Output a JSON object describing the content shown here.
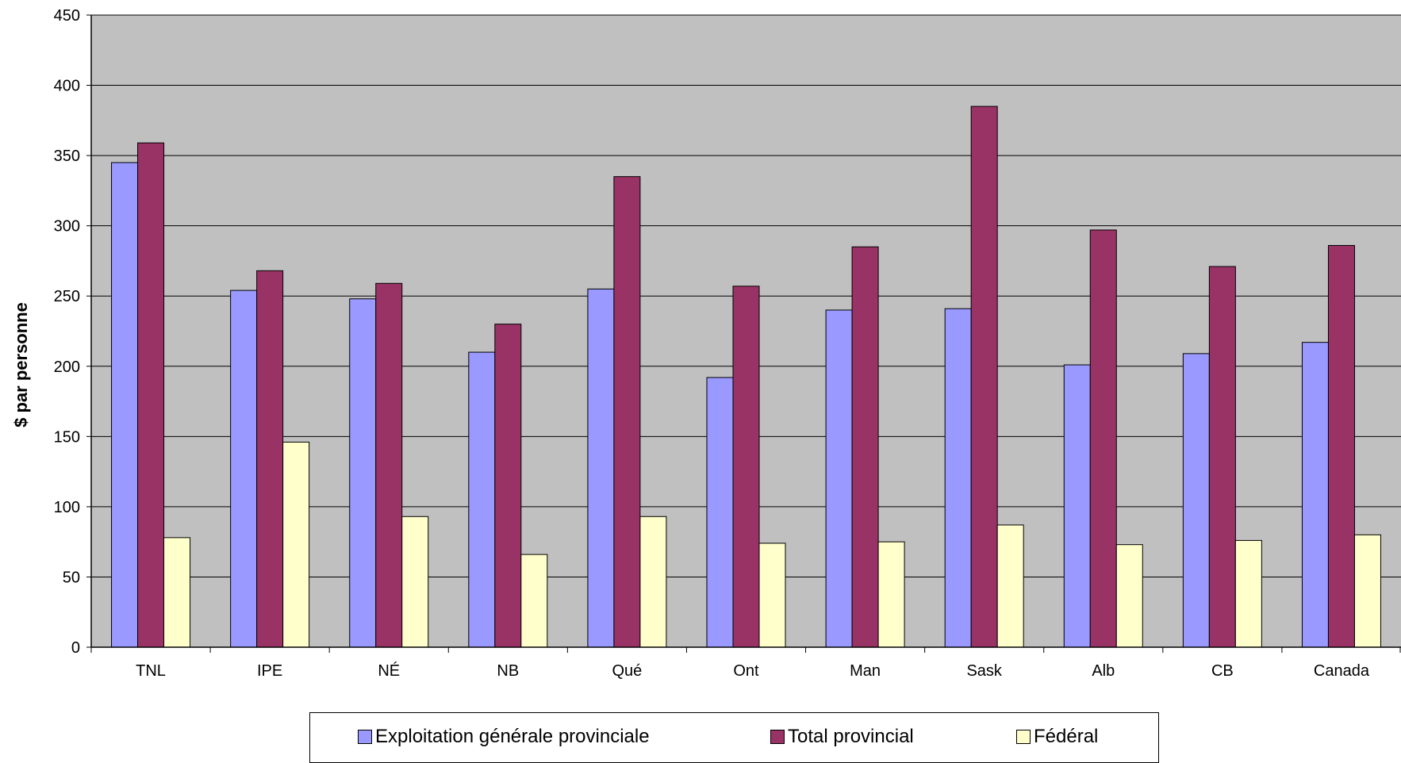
{
  "chart_data": {
    "type": "bar",
    "categories": [
      "TNL",
      "IPE",
      "NÉ",
      "NB",
      "Qué",
      "Ont",
      "Man",
      "Sask",
      "Alb",
      "CB",
      "Canada"
    ],
    "series": [
      {
        "name": "Exploitation générale provinciale",
        "color": "#9999FF",
        "values": [
          345,
          254,
          248,
          210,
          255,
          192,
          240,
          241,
          201,
          209,
          217
        ]
      },
      {
        "name": "Total provincial",
        "color": "#993366",
        "values": [
          359,
          268,
          259,
          230,
          335,
          257,
          285,
          385,
          297,
          271,
          286
        ]
      },
      {
        "name": "Fédéral",
        "color": "#FFFFCC",
        "values": [
          78,
          146,
          93,
          66,
          93,
          74,
          75,
          87,
          73,
          76,
          80
        ]
      }
    ],
    "ylabel": "$ par personne",
    "ylim": [
      0,
      450
    ],
    "yticks": [
      0,
      50,
      100,
      150,
      200,
      250,
      300,
      350,
      400,
      450
    ],
    "plot_background": "#C0C0C0",
    "grid": true,
    "legend_position": "bottom"
  }
}
